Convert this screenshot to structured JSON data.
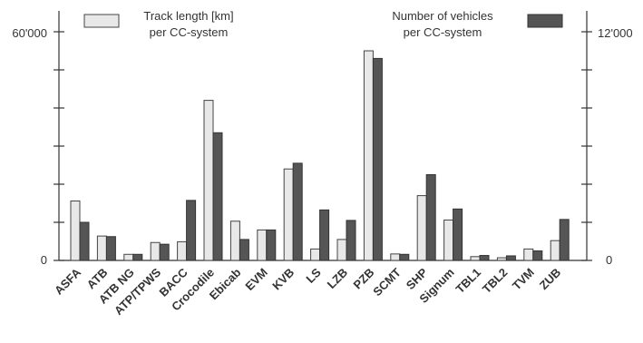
{
  "chart_data": {
    "type": "bar",
    "categories": [
      "ASFA",
      "ATB",
      "ATB NG",
      "ATP/TPWS",
      "BACC",
      "Crocodile",
      "Ebicab",
      "EVM",
      "KVB",
      "LS",
      "LZB",
      "PZB",
      "SCMT",
      "SHP",
      "Signum",
      "TBL1",
      "TBL2",
      "TVM",
      "ZUB"
    ],
    "series": [
      {
        "name": "Track length [km] per CC-system",
        "axis": "left",
        "color": "#e8e8e8",
        "values": [
          15600,
          6400,
          1600,
          4700,
          4900,
          42000,
          10300,
          8000,
          24000,
          3000,
          5500,
          55000,
          1700,
          17000,
          10600,
          1000,
          700,
          3000,
          5200
        ]
      },
      {
        "name": "Number of vehicles per CC-system",
        "axis": "right",
        "color": "#555555",
        "values": [
          2000,
          1250,
          320,
          850,
          3150,
          6700,
          1100,
          1600,
          5100,
          2650,
          2100,
          10600,
          320,
          4500,
          2700,
          260,
          240,
          500,
          2150
        ]
      }
    ],
    "y_left": {
      "min": 0,
      "max": 60000,
      "labels": [
        "0",
        "60'000"
      ]
    },
    "y_right": {
      "min": 0,
      "max": 12000,
      "labels": [
        "0",
        "12'000"
      ]
    },
    "legend": [
      {
        "line1": "Track length [km]",
        "line2": "per CC-system"
      },
      {
        "line1": "Number of vehicles",
        "line2": "per CC-system"
      }
    ],
    "grid": false,
    "legend_placement": "top"
  }
}
